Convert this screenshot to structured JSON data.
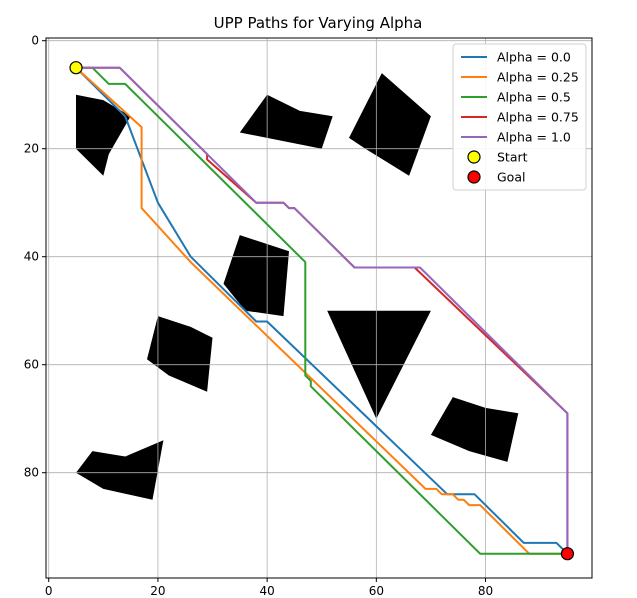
{
  "chart_data": {
    "type": "line",
    "title": "UPP Paths for Varying Alpha",
    "xlabel": "",
    "ylabel": "",
    "xlim": [
      -0.5,
      99.5
    ],
    "ylim": [
      99.5,
      -0.5
    ],
    "y_inverted": true,
    "x_ticks": [
      0,
      20,
      40,
      60,
      80
    ],
    "y_ticks": [
      0,
      20,
      40,
      60,
      80
    ],
    "grid": true,
    "legend_position": "top-right",
    "series": [
      {
        "name": "Alpha = 0.0",
        "color": "#1f77b4",
        "points": [
          [
            5,
            5
          ],
          [
            14,
            14
          ],
          [
            20,
            30
          ],
          [
            26,
            40
          ],
          [
            38,
            52
          ],
          [
            40,
            52
          ],
          [
            73,
            84
          ],
          [
            78,
            84
          ],
          [
            87,
            93
          ],
          [
            93,
            93
          ],
          [
            95,
            95
          ]
        ]
      },
      {
        "name": "Alpha = 0.25",
        "color": "#ff7f0e",
        "points": [
          [
            5,
            5
          ],
          [
            17,
            16
          ],
          [
            17,
            31
          ],
          [
            26,
            41
          ],
          [
            69,
            83
          ],
          [
            71,
            83
          ],
          [
            72,
            84
          ],
          [
            74,
            84
          ],
          [
            75,
            85
          ],
          [
            76,
            85
          ],
          [
            77,
            86
          ],
          [
            79,
            86
          ],
          [
            88,
            95
          ],
          [
            95,
            95
          ]
        ]
      },
      {
        "name": "Alpha = 0.5",
        "color": "#2ca02c",
        "points": [
          [
            5,
            5
          ],
          [
            8,
            5
          ],
          [
            11,
            8
          ],
          [
            14,
            8
          ],
          [
            47,
            41
          ],
          [
            47,
            62
          ],
          [
            48,
            63
          ],
          [
            48,
            64
          ],
          [
            79,
            95
          ],
          [
            95,
            95
          ]
        ]
      },
      {
        "name": "Alpha = 0.75",
        "color": "#d62728",
        "points": [
          [
            5,
            5
          ],
          [
            13,
            5
          ],
          [
            15,
            7
          ],
          [
            29,
            21
          ],
          [
            29,
            22
          ],
          [
            38,
            30
          ],
          [
            43,
            30
          ],
          [
            44,
            31
          ],
          [
            45,
            31
          ],
          [
            56,
            42
          ],
          [
            67,
            42
          ],
          [
            95,
            69
          ],
          [
            95,
            95
          ]
        ]
      },
      {
        "name": "Alpha = 1.0",
        "color": "#9467bd",
        "points": [
          [
            5,
            5
          ],
          [
            13,
            5
          ],
          [
            14,
            6
          ],
          [
            38,
            30
          ],
          [
            43,
            30
          ],
          [
            44,
            31
          ],
          [
            45,
            31
          ],
          [
            56,
            42
          ],
          [
            68,
            42
          ],
          [
            95,
            69
          ],
          [
            95,
            95
          ]
        ]
      }
    ],
    "markers": [
      {
        "name": "Start",
        "x": 5,
        "y": 5,
        "color": "#ffff00"
      },
      {
        "name": "Goal",
        "x": 95,
        "y": 95,
        "color": "#ff0000"
      }
    ],
    "obstacles": [
      {
        "shape": [
          [
            5,
            10
          ],
          [
            10,
            11
          ],
          [
            15,
            14
          ],
          [
            11,
            21
          ],
          [
            10,
            25
          ],
          [
            5,
            20
          ]
        ]
      },
      {
        "shape": [
          [
            35,
            17
          ],
          [
            40,
            10
          ],
          [
            46,
            13
          ],
          [
            52,
            14
          ],
          [
            50,
            20
          ],
          [
            40,
            18
          ]
        ]
      },
      {
        "shape": [
          [
            55,
            18
          ],
          [
            61,
            6
          ],
          [
            70,
            14
          ],
          [
            66,
            25
          ],
          [
            58,
            20
          ]
        ]
      },
      {
        "shape": [
          [
            32,
            45
          ],
          [
            35,
            36
          ],
          [
            44,
            39
          ],
          [
            43,
            51
          ],
          [
            36,
            50
          ]
        ]
      },
      {
        "shape": [
          [
            18,
            59
          ],
          [
            20,
            51
          ],
          [
            26,
            53
          ],
          [
            30,
            55
          ],
          [
            29,
            65
          ],
          [
            22,
            62
          ]
        ]
      },
      {
        "shape": [
          [
            51,
            50
          ],
          [
            70,
            50
          ],
          [
            60,
            70
          ]
        ]
      },
      {
        "shape": [
          [
            70,
            73
          ],
          [
            74,
            66
          ],
          [
            80,
            68
          ],
          [
            86,
            69
          ],
          [
            84,
            78
          ],
          [
            77,
            76
          ]
        ]
      },
      {
        "shape": [
          [
            5,
            80
          ],
          [
            8,
            76
          ],
          [
            14,
            77
          ],
          [
            21,
            74
          ],
          [
            19,
            85
          ],
          [
            10,
            83
          ]
        ]
      }
    ]
  }
}
